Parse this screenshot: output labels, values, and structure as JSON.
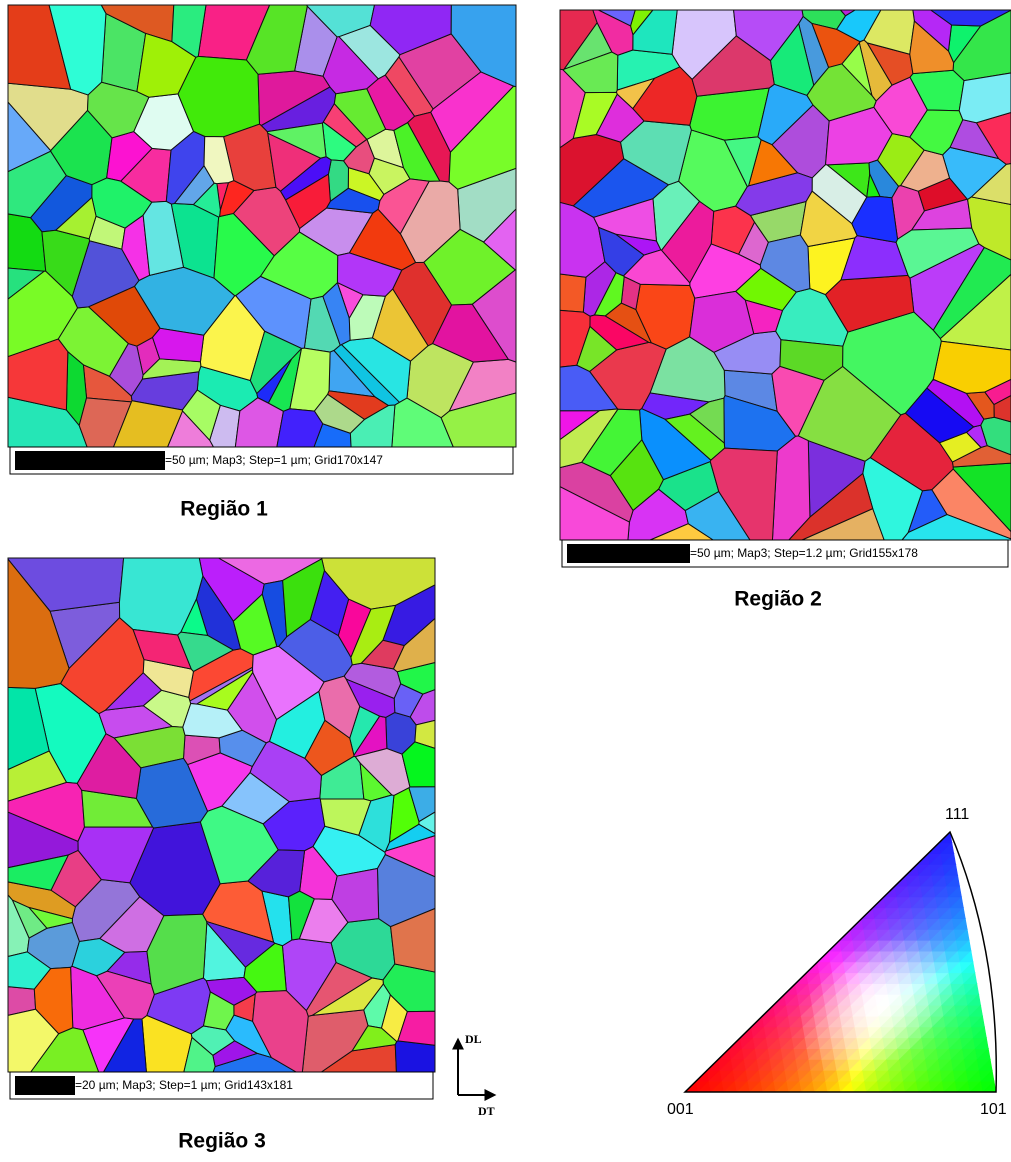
{
  "maps": [
    {
      "label": "Região 1",
      "scale_text": "=50 µm; Map3; Step=1 µm; Grid170x147"
    },
    {
      "label": "Região 2",
      "scale_text": "=50 µm; Map3; Step=1.2 µm; Grid155x178"
    },
    {
      "label": "Região 3",
      "scale_text": "=20 µm; Map3; Step=1 µm; Grid143x181"
    }
  ],
  "legend": {
    "corner_001": "001",
    "corner_111": "111",
    "corner_101": "101"
  },
  "axes": {
    "vertical": "DL",
    "horizontal": "DT"
  }
}
